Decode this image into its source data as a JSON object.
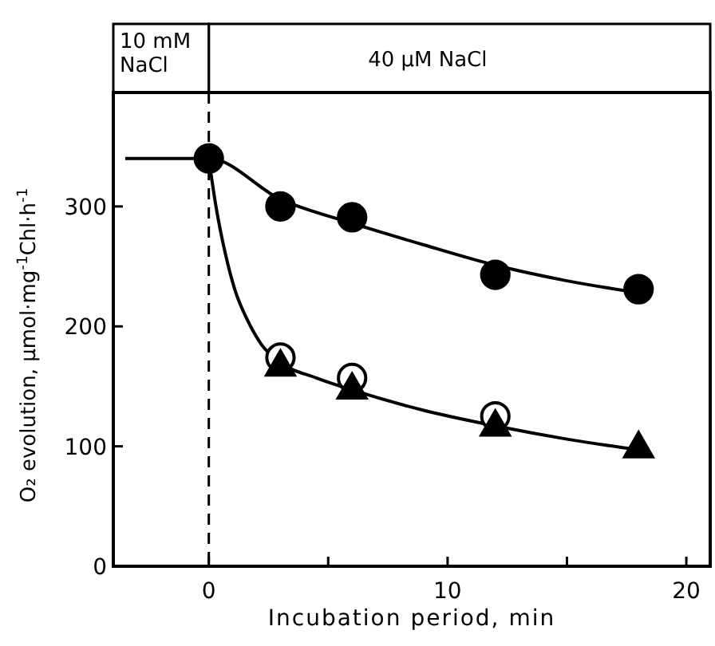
{
  "chart_data": {
    "type": "scatter",
    "xlabel": "Incubation period,  min",
    "ylabel": "O₂ evolution,  μmol·mg$^{-1}$Chl·h$^{-1}$",
    "xlim": [
      -4,
      21
    ],
    "ylim": [
      0,
      395
    ],
    "xticks": [
      0,
      {
        "value": 5,
        "label": null
      },
      10,
      {
        "value": 15,
        "label": null
      },
      20
    ],
    "yticks": [
      0,
      100,
      200,
      300
    ],
    "grid": false,
    "ref_lines": [
      {
        "axis": "x",
        "value": 0,
        "line_style": "dashed",
        "color": "#000000"
      }
    ],
    "annotations": [
      "10 mM\nNaCl",
      "40 μM  NaCl"
    ],
    "series": [
      {
        "type": "line",
        "color": "#000000",
        "marker": "none",
        "x": [
          -3.5,
          0,
          3,
          6,
          9,
          12,
          15,
          18
        ],
        "values": [
          340,
          340,
          306,
          286,
          268,
          251,
          238,
          228
        ]
      },
      {
        "type": "line",
        "color": "#000000",
        "marker": "none",
        "x": [
          0,
          0.3,
          0.7,
          1.1,
          1.6,
          2.2,
          3,
          4.5,
          6,
          9,
          12,
          15,
          18
        ],
        "values": [
          340,
          300,
          260,
          230,
          206,
          185,
          170,
          157,
          147,
          130,
          117,
          106,
          97
        ]
      },
      {
        "color": "#ffffff",
        "marker": "circle",
        "x": [
          3,
          6,
          12
        ],
        "values": [
          174,
          157,
          125
        ]
      },
      {
        "color": "#000000",
        "marker": "triangle",
        "x": [
          3,
          6,
          12,
          18
        ],
        "values": [
          166,
          147,
          116,
          98
        ]
      },
      {
        "color": "#000000",
        "marker": "circle",
        "x": [
          0,
          3,
          6,
          12,
          18
        ],
        "values": [
          340,
          300,
          291,
          243,
          231
        ]
      }
    ]
  }
}
